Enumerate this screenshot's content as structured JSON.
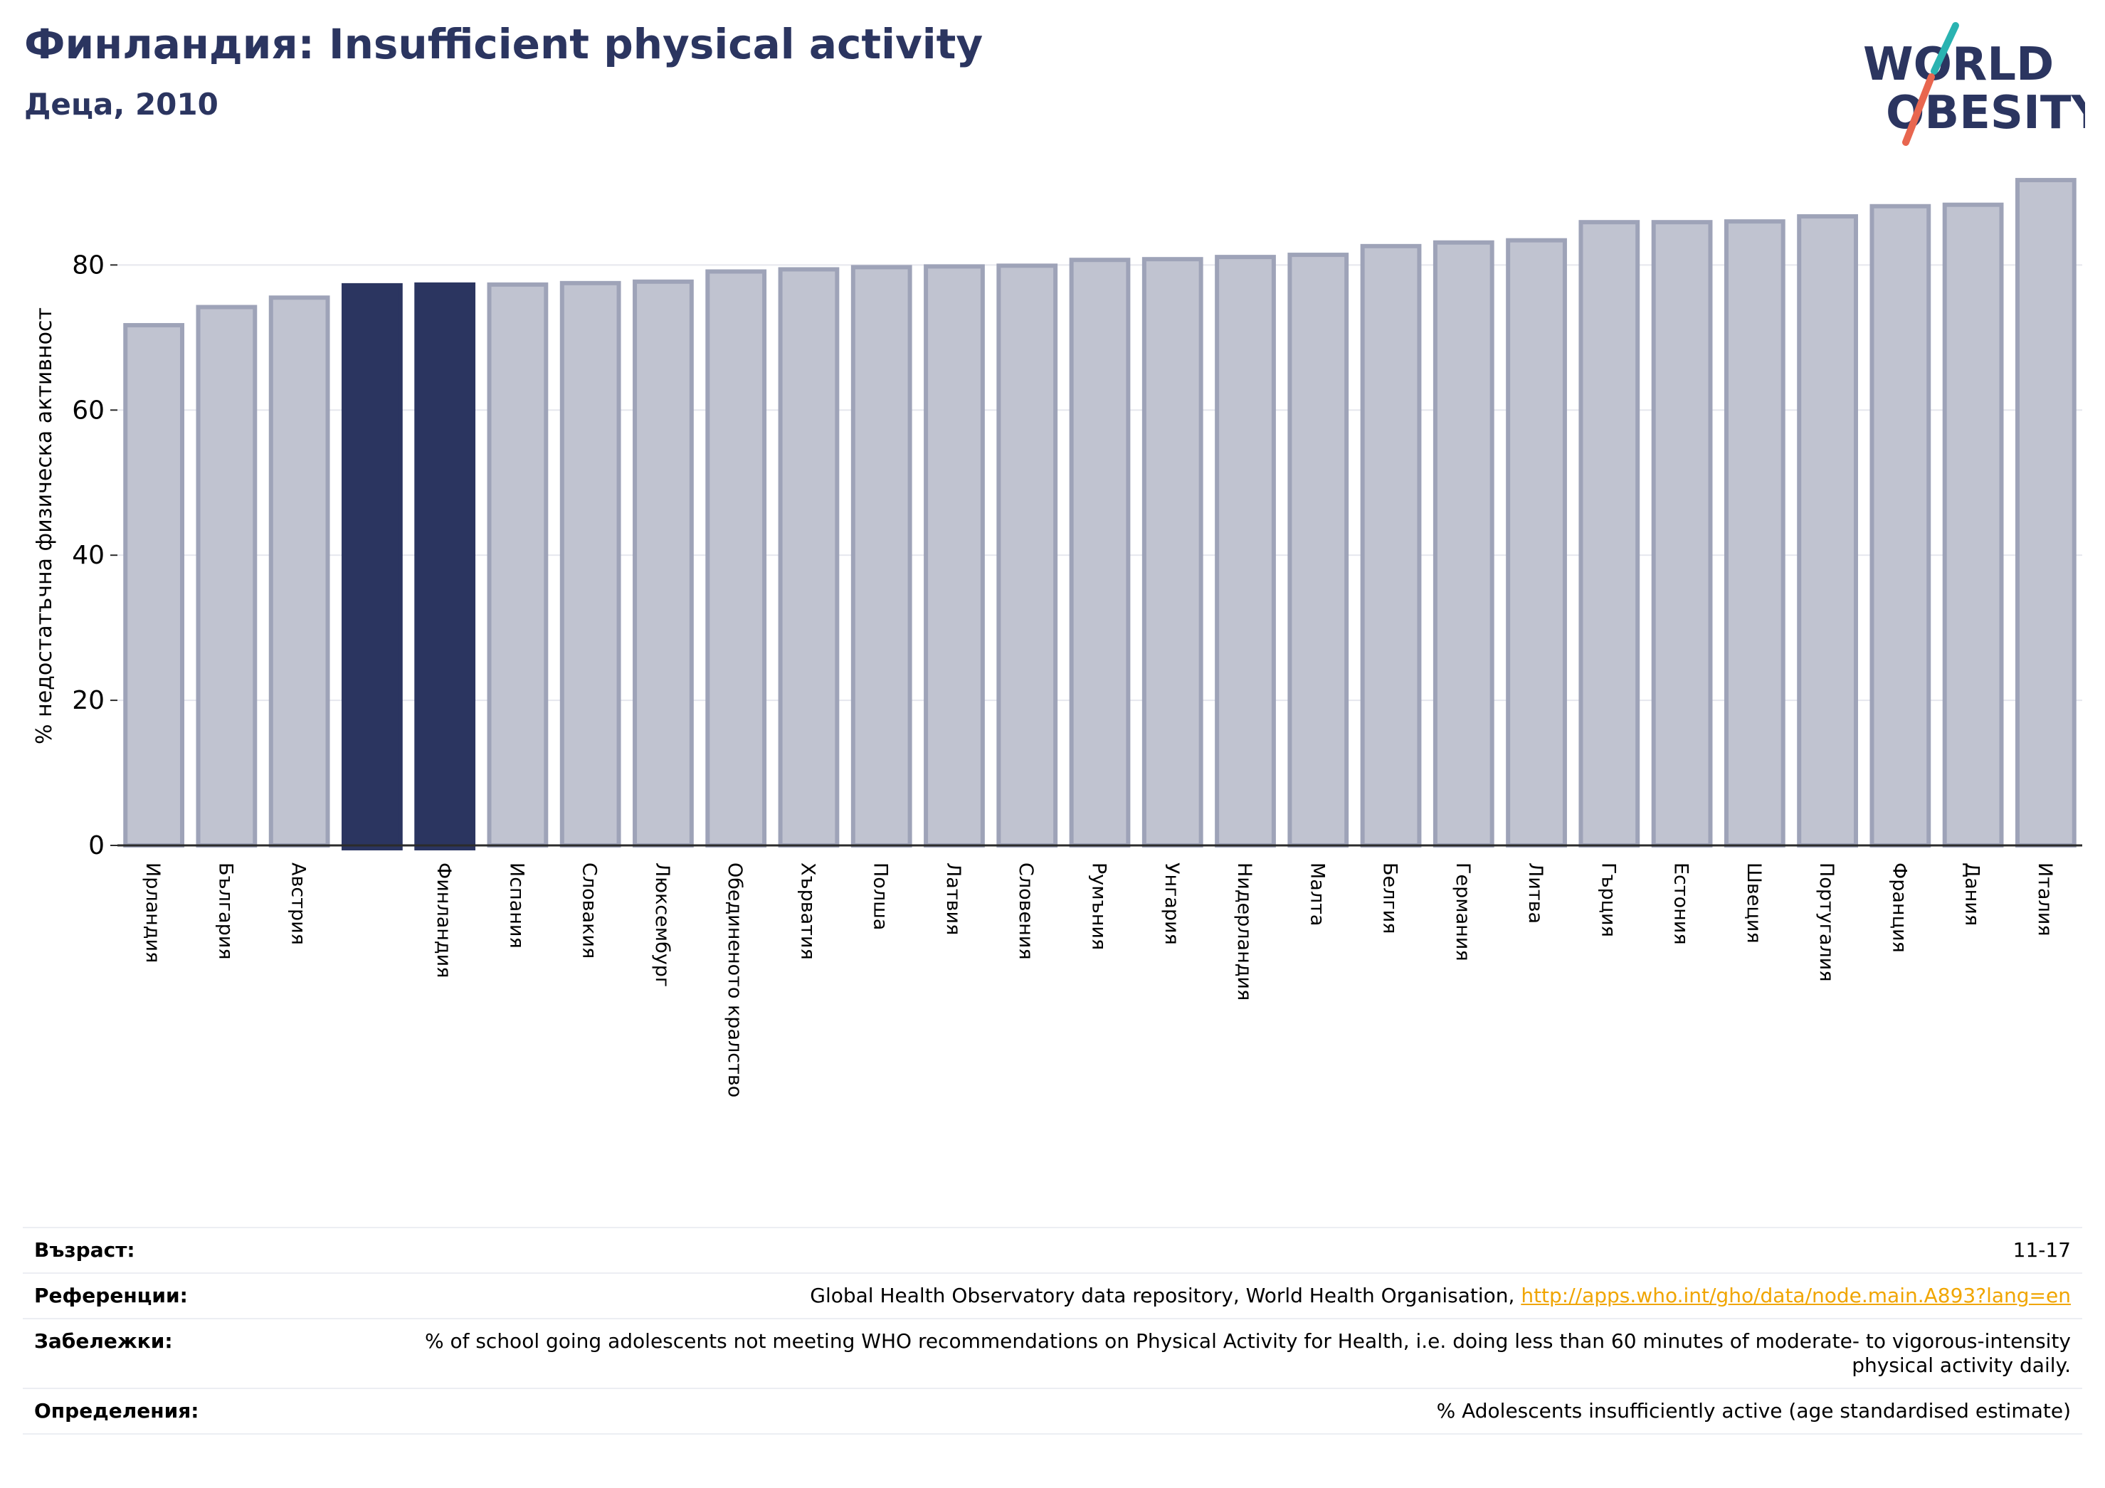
{
  "header": {
    "title": "Финландия: Insufficient physical activity",
    "subtitle": "Деца, 2010"
  },
  "logo": {
    "line1": "WORLD",
    "line2": "OBESITY",
    "colors": {
      "text": "#2b3560",
      "slash_top": "#2ab3b1",
      "slash_bottom": "#e8664f"
    }
  },
  "colors": {
    "bar": "#c0c3d0",
    "bar_edge": "#9ea3b8",
    "highlight": "#2b3560",
    "grid": "#e6e7ee",
    "axis": "#2b2b2b"
  },
  "chart_data": {
    "type": "bar",
    "title": "",
    "xlabel": "",
    "ylabel": "% недостатъчна физическа активност",
    "ylim": [
      0,
      92
    ],
    "yticks": [
      0,
      20,
      40,
      60,
      80
    ],
    "grid": true,
    "categories": [
      "Ирландия",
      "България",
      "Австрия",
      "",
      "Финландия",
      "Испания",
      "Словакия",
      "Люксембург",
      "Обединеното кралство",
      "Хърватия",
      "Полша",
      "Латвия",
      "Словения",
      "Румъния",
      "Унгария",
      "Нидерландия",
      "Малта",
      "Белгия",
      "Германия",
      "Литва",
      "Гърция",
      "Естония",
      "Швеция",
      "Португалия",
      "Франция",
      "Дания",
      "Италия"
    ],
    "values": [
      71.7,
      74.2,
      75.5,
      77.2,
      77.3,
      77.3,
      77.5,
      77.7,
      79.1,
      79.4,
      79.7,
      79.8,
      79.9,
      80.7,
      80.8,
      81.1,
      81.4,
      82.6,
      83.1,
      83.4,
      85.9,
      85.9,
      86.0,
      86.7,
      88.1,
      88.3,
      91.7
    ],
    "highlighted": [
      3,
      4
    ]
  },
  "meta": [
    {
      "label": "Възраст:",
      "value": "11-17",
      "link": ""
    },
    {
      "label": "Референции:",
      "value": "Global Health Observatory data repository, World Health Organisation, ",
      "link": "http://apps.who.int/gho/data/node.main.A893?lang=en"
    },
    {
      "label": "Забележки:",
      "value": "% of school going adolescents not meeting WHO recommendations on Physical Activity for Health, i.e. doing less than 60 minutes of moderate- to vigorous-intensity physical activity daily.",
      "link": ""
    },
    {
      "label": "Определения:",
      "value": "% Adolescents insufficiently active (age standardised estimate)",
      "link": ""
    }
  ]
}
